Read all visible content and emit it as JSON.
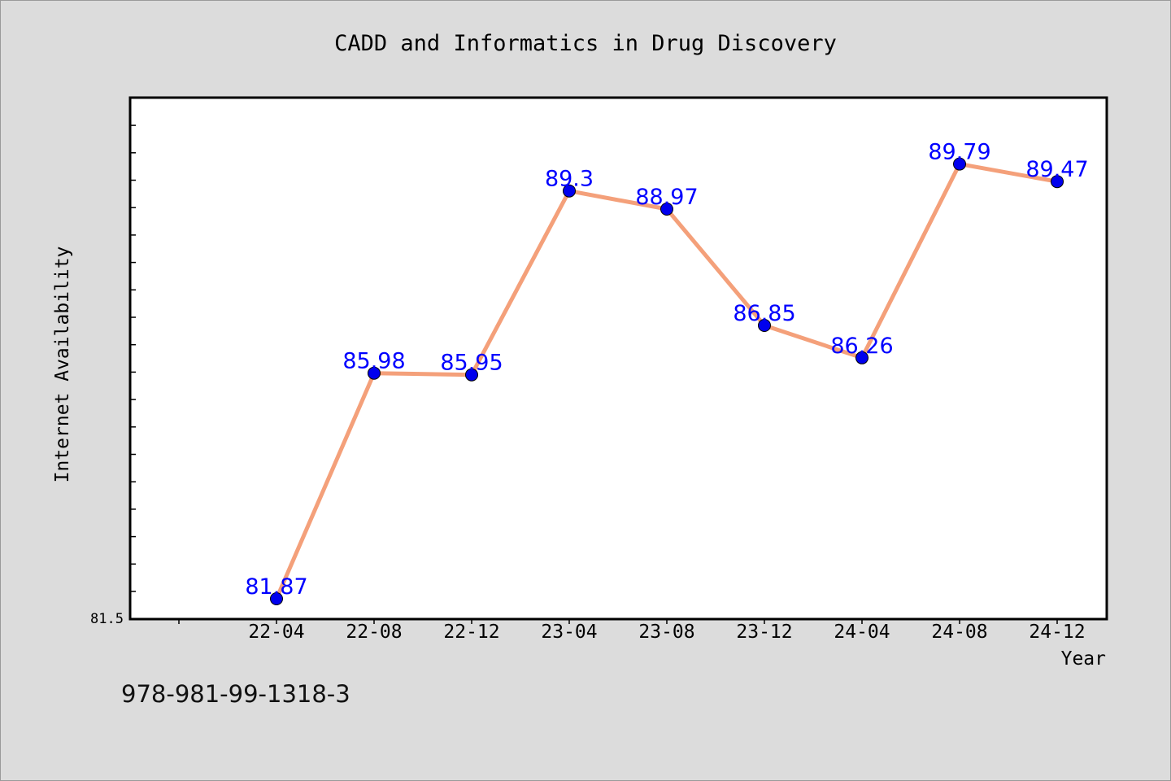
{
  "chart_data": {
    "type": "line",
    "title": "CADD and Informatics in Drug Discovery",
    "xlabel": "Year",
    "ylabel": "Internet Availability",
    "categories": [
      "22-04",
      "22-08",
      "22-12",
      "23-04",
      "23-08",
      "23-12",
      "24-04",
      "24-08",
      "24-12"
    ],
    "series": [
      {
        "values": [
          81.87,
          85.98,
          85.95,
          89.3,
          88.97,
          86.85,
          86.26,
          89.79,
          89.47
        ],
        "data_labels": [
          "81.87",
          "85.98",
          "85.95",
          "89.3",
          "88.97",
          "86.85",
          "86.26",
          "89.79",
          "89.47"
        ],
        "line_color": "#f4a07a",
        "marker_color": "#0000ee",
        "label_color": "#0000ff"
      }
    ],
    "ylim": [
      81.5,
      91.0
    ],
    "y_tick_labels": [
      "81.5"
    ],
    "grid": false,
    "legend": "none"
  },
  "footer_text": "978-981-99-1318-3"
}
